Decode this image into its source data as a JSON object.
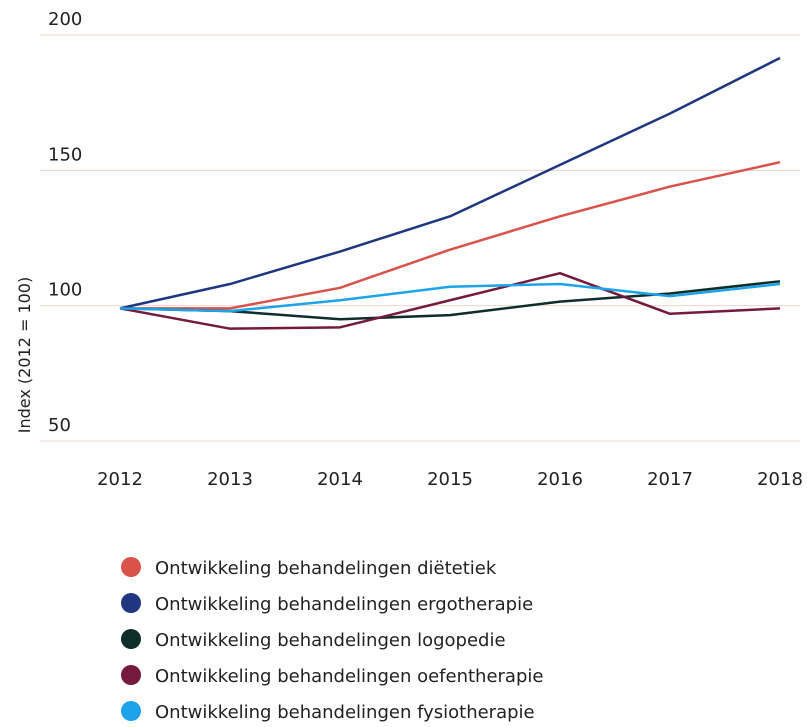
{
  "chart_data": {
    "type": "line",
    "y_axis_label": "Index (2012 = 100)",
    "x": [
      "2012",
      "2013",
      "2014",
      "2015",
      "2016",
      "2017",
      "2018"
    ],
    "series": [
      {
        "name": "Ontwikkeling behandelingen diëtetiek",
        "color": "#d9534a",
        "values": [
          99,
          99,
          106.6,
          120.7,
          133,
          144,
          153
        ]
      },
      {
        "name": "Ontwikkeling behandelingen ergotherapie",
        "color": "#1f3680",
        "values": [
          99,
          108,
          120,
          133,
          152,
          171,
          191.5
        ]
      },
      {
        "name": "Ontwikkeling behandelingen logopedie",
        "color": "#0d2e2b",
        "values": [
          99,
          98,
          95,
          96.5,
          101.5,
          104.5,
          109
        ]
      },
      {
        "name": "Ontwikkeling behandelingen oefentherapie",
        "color": "#751a3d",
        "values": [
          99,
          91.5,
          92,
          102,
          112,
          97,
          99
        ]
      },
      {
        "name": "Ontwikkeling behandelingen fysiotherapie",
        "color": "#1ca3ec",
        "values": [
          99,
          98,
          102,
          107,
          108,
          103.5,
          108
        ]
      }
    ],
    "ylim": [
      50,
      200
    ],
    "yticks": [
      50,
      100,
      150,
      200
    ],
    "grid": true
  }
}
